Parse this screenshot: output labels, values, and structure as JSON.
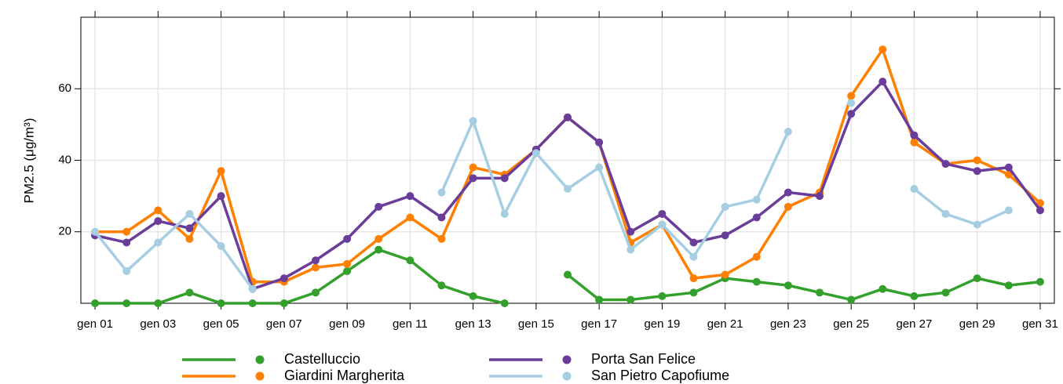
{
  "chart_data": {
    "type": "line",
    "y_label": "PM2.5 (μg/m³)",
    "categories": [
      "gen 01",
      null,
      "gen 03",
      null,
      "gen 05",
      null,
      "gen 07",
      null,
      "gen 09",
      null,
      "gen 11",
      null,
      "gen 13",
      null,
      "gen 15",
      null,
      "gen 17",
      null,
      "gen 19",
      null,
      "gen 21",
      null,
      "gen 23",
      null,
      "gen 25",
      null,
      "gen 27",
      null,
      "gen 29",
      null,
      "gen 31"
    ],
    "ylim": [
      0,
      80
    ],
    "yticks": [
      20,
      40,
      60
    ],
    "grid": true,
    "series": [
      {
        "name": "Castelluccio",
        "color": "#33a02c",
        "values": [
          0,
          0,
          0,
          3,
          0,
          0,
          0,
          3,
          9,
          15,
          12,
          5,
          2,
          0,
          null,
          8,
          1,
          1,
          2,
          3,
          7,
          6,
          5,
          3,
          1,
          4,
          2,
          3,
          7,
          5,
          6
        ]
      },
      {
        "name": "Giardini Margherita",
        "color": "#ff7f00",
        "values": [
          20,
          20,
          26,
          18,
          37,
          6,
          6,
          10,
          11,
          18,
          24,
          18,
          38,
          36,
          43,
          52,
          45,
          17,
          22,
          7,
          8,
          13,
          27,
          31,
          58,
          71,
          45,
          39,
          40,
          36,
          28
        ]
      },
      {
        "name": "Porta San Felice",
        "color": "#6a3d9a",
        "values": [
          19,
          17,
          23,
          21,
          30,
          4,
          7,
          12,
          18,
          27,
          30,
          24,
          35,
          35,
          43,
          52,
          45,
          20,
          25,
          17,
          19,
          24,
          31,
          30,
          53,
          62,
          47,
          39,
          37,
          38,
          26
        ]
      },
      {
        "name": "San Pietro Capofiume",
        "color": "#a6cee3",
        "values": [
          20,
          9,
          17,
          25,
          16,
          4,
          null,
          null,
          null,
          null,
          null,
          31,
          51,
          25,
          42,
          32,
          38,
          15,
          22,
          13,
          27,
          29,
          48,
          null,
          56,
          null,
          32,
          25,
          22,
          26,
          null
        ]
      }
    ]
  }
}
